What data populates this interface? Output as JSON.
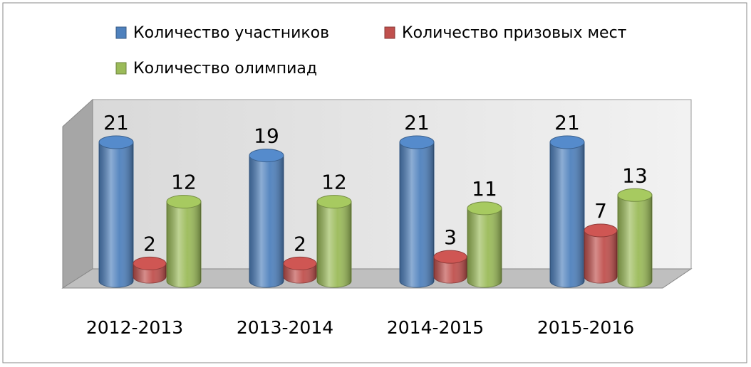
{
  "chart_data": {
    "type": "bar3d",
    "categories": [
      "2012-2013",
      "2013-2014",
      "2014-2015",
      "2015-2016"
    ],
    "series": [
      {
        "name": "Количество участников",
        "color": "#4f81bd",
        "values": [
          21,
          19,
          21,
          21
        ]
      },
      {
        "name": "Количество призовых мест",
        "color": "#c0504d",
        "values": [
          2,
          2,
          3,
          7
        ]
      },
      {
        "name": "Количество олимпиад",
        "color": "#9bbb59",
        "values": [
          12,
          12,
          11,
          13
        ]
      }
    ]
  }
}
